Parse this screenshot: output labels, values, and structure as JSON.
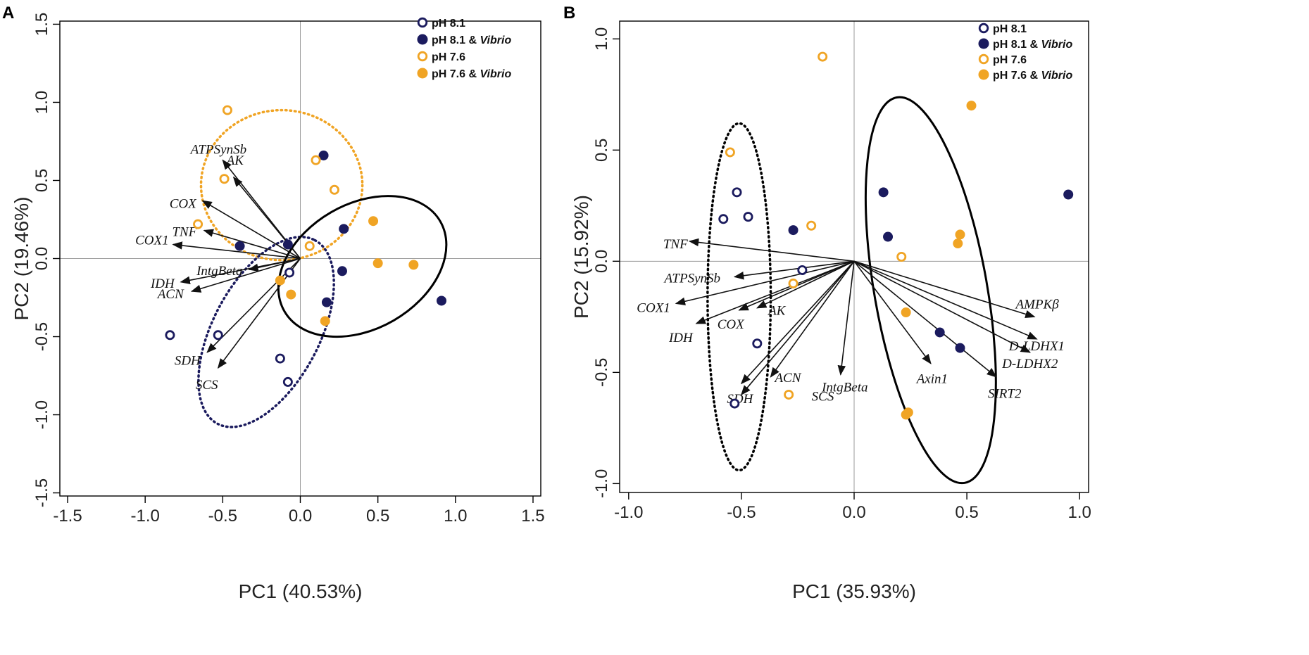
{
  "colors": {
    "navy": "#1b1b5e",
    "orange": "#f0a424",
    "black": "#000000",
    "refline": "#9a9a9a"
  },
  "legend": [
    {
      "label": "pH 8.1",
      "italic": "",
      "color": "#1b1b5e",
      "filled": false
    },
    {
      "label": "pH 8.1 & ",
      "italic": "Vibrio",
      "color": "#1b1b5e",
      "filled": true
    },
    {
      "label": "pH 7.6",
      "italic": "",
      "color": "#f0a424",
      "filled": false
    },
    {
      "label": "pH 7.6 & ",
      "italic": "Vibrio",
      "color": "#f0a424",
      "filled": true
    }
  ],
  "chart_data": [
    {
      "panel": "A",
      "type": "scatter",
      "xlabel": "PC1 (40.53%)",
      "ylabel": "PC2 (19.46%)",
      "xlim": [
        -1.55,
        1.55
      ],
      "ylim": [
        -1.52,
        1.52
      ],
      "xticks": [
        -1.5,
        -1.0,
        -0.5,
        0.0,
        0.5,
        1.0,
        1.5
      ],
      "xtick_labels": [
        "-1.5",
        "-1.0",
        "-0.5",
        "0.0",
        "0.5",
        "1.0",
        "1.5"
      ],
      "yticks": [
        -1.5,
        -1.0,
        -0.5,
        0.0,
        0.5,
        1.0,
        1.5
      ],
      "ytick_labels": [
        "-1.5",
        "-1.0",
        "-0.5",
        "0.0",
        "0.5",
        "1.0",
        "1.5"
      ],
      "series": [
        {
          "name": "pH 8.1",
          "color": "#1b1b5e",
          "filled": false,
          "points": [
            [
              -0.84,
              -0.49
            ],
            [
              -0.53,
              -0.49
            ],
            [
              -0.13,
              -0.64
            ],
            [
              -0.08,
              -0.79
            ],
            [
              -0.07,
              -0.09
            ]
          ]
        },
        {
          "name": "pH 8.1 & Vibrio",
          "color": "#1b1b5e",
          "filled": true,
          "points": [
            [
              -0.39,
              0.08
            ],
            [
              -0.08,
              0.09
            ],
            [
              0.15,
              0.66
            ],
            [
              0.28,
              0.19
            ],
            [
              0.27,
              -0.08
            ],
            [
              0.17,
              -0.28
            ],
            [
              0.91,
              -0.27
            ]
          ]
        },
        {
          "name": "pH 7.6",
          "color": "#f0a424",
          "filled": false,
          "points": [
            [
              -0.47,
              0.95
            ],
            [
              -0.49,
              0.51
            ],
            [
              -0.66,
              0.22
            ],
            [
              0.1,
              0.63
            ],
            [
              0.22,
              0.44
            ],
            [
              0.06,
              0.08
            ]
          ]
        },
        {
          "name": "pH 7.6 & Vibrio",
          "color": "#f0a424",
          "filled": true,
          "points": [
            [
              0.47,
              0.24
            ],
            [
              0.5,
              -0.03
            ],
            [
              0.73,
              -0.04
            ],
            [
              -0.13,
              -0.14
            ],
            [
              -0.06,
              -0.23
            ],
            [
              0.16,
              -0.4
            ]
          ]
        }
      ],
      "loadings": [
        {
          "gene": "ATPSynSb",
          "x": -0.5,
          "y": 0.63
        },
        {
          "gene": "AK",
          "x": -0.43,
          "y": 0.52
        },
        {
          "gene": "COX",
          "x": -0.63,
          "y": 0.37
        },
        {
          "gene": "TNF",
          "x": -0.62,
          "y": 0.18
        },
        {
          "gene": "COX1",
          "x": -0.82,
          "y": 0.09
        },
        {
          "gene": "IntgBeta",
          "x": -0.33,
          "y": -0.07
        },
        {
          "gene": "IDH",
          "x": -0.77,
          "y": -0.15
        },
        {
          "gene": "ACN",
          "x": -0.7,
          "y": -0.21
        },
        {
          "gene": "SDH",
          "x": -0.6,
          "y": -0.6
        },
        {
          "gene": "SCS",
          "x": -0.53,
          "y": -0.7
        }
      ],
      "ellipses": [
        {
          "group": "pH 7.6",
          "style": "dotted",
          "color": "#f0a424",
          "cx": -0.12,
          "cy": 0.47,
          "rx": 0.52,
          "ry": 0.48,
          "angle": 0
        },
        {
          "group": "pH 8.1",
          "style": "dotted",
          "color": "#1b1b5e",
          "cx": -0.22,
          "cy": -0.47,
          "rx": 0.67,
          "ry": 0.34,
          "angle": -62
        },
        {
          "group": "Vibrio",
          "style": "solid",
          "color": "#000000",
          "cx": 0.4,
          "cy": -0.05,
          "rx": 0.58,
          "ry": 0.4,
          "angle": -30
        }
      ]
    },
    {
      "panel": "B",
      "type": "scatter",
      "xlabel": "PC1 (35.93%)",
      "ylabel": "PC2 (15.92%)",
      "xlim": [
        -1.04,
        1.04
      ],
      "ylim": [
        -1.04,
        1.08
      ],
      "xticks": [
        -1.0,
        -0.5,
        0.0,
        0.5,
        1.0
      ],
      "xtick_labels": [
        "-1.0",
        "-0.5",
        "0.0",
        "0.5",
        "1.0"
      ],
      "yticks": [
        -1.0,
        -0.5,
        0.0,
        0.5,
        1.0
      ],
      "ytick_labels": [
        "-1.0",
        "-0.5",
        "0.0",
        "0.5",
        "1.0"
      ],
      "series": [
        {
          "name": "pH 8.1",
          "color": "#1b1b5e",
          "filled": false,
          "points": [
            [
              -0.52,
              0.31
            ],
            [
              -0.58,
              0.19
            ],
            [
              -0.47,
              0.2
            ],
            [
              -0.23,
              -0.04
            ],
            [
              -0.43,
              -0.37
            ],
            [
              -0.53,
              -0.64
            ]
          ]
        },
        {
          "name": "pH 8.1 & Vibrio",
          "color": "#1b1b5e",
          "filled": true,
          "points": [
            [
              -0.27,
              0.14
            ],
            [
              0.13,
              0.31
            ],
            [
              0.15,
              0.11
            ],
            [
              0.38,
              -0.32
            ],
            [
              0.47,
              -0.39
            ],
            [
              0.95,
              0.3
            ]
          ]
        },
        {
          "name": "pH 7.6",
          "color": "#f0a424",
          "filled": false,
          "points": [
            [
              -0.14,
              0.92
            ],
            [
              -0.55,
              0.49
            ],
            [
              -0.19,
              0.16
            ],
            [
              -0.27,
              -0.1
            ],
            [
              0.21,
              0.02
            ],
            [
              -0.29,
              -0.6
            ]
          ]
        },
        {
          "name": "pH 7.6 & Vibrio",
          "color": "#f0a424",
          "filled": true,
          "points": [
            [
              0.52,
              0.7
            ],
            [
              0.47,
              0.12
            ],
            [
              0.46,
              0.08
            ],
            [
              0.23,
              -0.23
            ],
            [
              0.24,
              -0.68
            ],
            [
              0.23,
              -0.69
            ]
          ]
        }
      ],
      "loadings": [
        {
          "gene": "TNF",
          "x": -0.73,
          "y": 0.09
        },
        {
          "gene": "ATPSynSb",
          "x": -0.53,
          "y": -0.07
        },
        {
          "gene": "COX1",
          "x": -0.79,
          "y": -0.19
        },
        {
          "gene": "IDH",
          "x": -0.7,
          "y": -0.28
        },
        {
          "gene": "COX",
          "x": -0.51,
          "y": -0.22
        },
        {
          "gene": "AK",
          "x": -0.43,
          "y": -0.21
        },
        {
          "gene": "ACN",
          "x": -0.5,
          "y": -0.55
        },
        {
          "gene": "SDH",
          "x": -0.5,
          "y": -0.6
        },
        {
          "gene": "SCS",
          "x": -0.37,
          "y": -0.52
        },
        {
          "gene": "IntgBeta",
          "x": -0.06,
          "y": -0.51
        },
        {
          "gene": "Axin1",
          "x": 0.34,
          "y": -0.46
        },
        {
          "gene": "SIRT2",
          "x": 0.63,
          "y": -0.52
        },
        {
          "gene": "D-LDHX2",
          "x": 0.78,
          "y": -0.41
        },
        {
          "gene": "D-LDHX1",
          "x": 0.81,
          "y": -0.35
        },
        {
          "gene": "AMPKβ",
          "x": 0.8,
          "y": -0.25
        }
      ],
      "ellipses": [
        {
          "group": "pH 8.1 & pH 7.6",
          "style": "dotted",
          "color": "#000000",
          "cx": -0.51,
          "cy": -0.16,
          "rx": 0.14,
          "ry": 0.78,
          "angle": 0
        },
        {
          "group": "Vibrio",
          "style": "solid",
          "color": "#000000",
          "cx": 0.34,
          "cy": -0.13,
          "rx": 0.25,
          "ry": 0.88,
          "angle": -10
        }
      ]
    }
  ]
}
